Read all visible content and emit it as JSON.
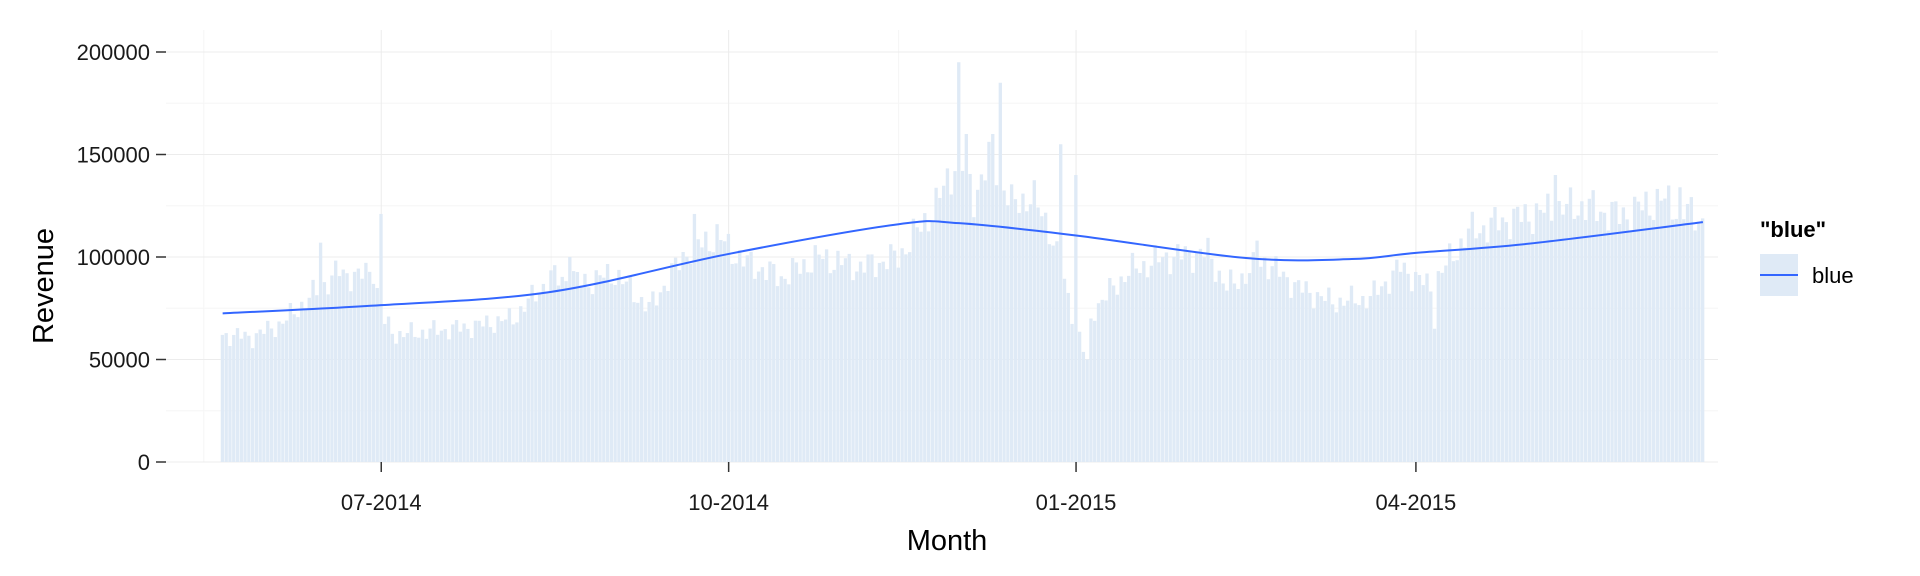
{
  "chart_data": {
    "type": "bar",
    "title": "",
    "xlabel": "Month",
    "ylabel": "Revenue",
    "x_range": [
      "2014-05-05",
      "2015-06-20"
    ],
    "ylim": [
      0,
      200000
    ],
    "y_ticks": [
      0,
      50000,
      100000,
      150000,
      200000
    ],
    "y_tick_labels": [
      "0",
      "50000",
      "100000",
      "150000",
      "200000"
    ],
    "x_ticks": [
      {
        "date": "2014-07-01",
        "label": "07-2014"
      },
      {
        "date": "2014-10-01",
        "label": "10-2014"
      },
      {
        "date": "2015-01-01",
        "label": "01-2015"
      },
      {
        "date": "2015-04-01",
        "label": "04-2015"
      }
    ],
    "x_minor_ticks": [
      "2014-05-15",
      "2014-08-15",
      "2014-11-15",
      "2015-02-15",
      "2015-05-15"
    ],
    "grid": true,
    "legend": {
      "title": "\"blue\"",
      "label": "blue",
      "position": "right"
    },
    "colors": {
      "bars": "#dfeaf6",
      "line": "#3366ff",
      "grid_major": "#ececec",
      "grid_minor": "#f6f6f6"
    },
    "bar_series": {
      "name": "Revenue",
      "start_date": "2014-05-20",
      "end_date": "2015-06-16",
      "anchors": [
        [
          "2014-05-20",
          62000
        ],
        [
          "2014-05-28",
          61000
        ],
        [
          "2014-06-05",
          68000
        ],
        [
          "2014-06-12",
          80000
        ],
        [
          "2014-06-20",
          93000
        ],
        [
          "2014-06-25",
          90000
        ],
        [
          "2014-06-29",
          95000
        ],
        [
          "2014-07-01",
          70000
        ],
        [
          "2014-07-05",
          62000
        ],
        [
          "2014-07-15",
          64000
        ],
        [
          "2014-07-25",
          66000
        ],
        [
          "2014-08-05",
          70000
        ],
        [
          "2014-08-15",
          90000
        ],
        [
          "2014-08-25",
          88000
        ],
        [
          "2014-09-01",
          92000
        ],
        [
          "2014-09-10",
          75000
        ],
        [
          "2014-09-20",
          103000
        ],
        [
          "2014-09-28",
          110000
        ],
        [
          "2014-10-05",
          98000
        ],
        [
          "2014-10-15",
          90000
        ],
        [
          "2014-10-25",
          100000
        ],
        [
          "2014-11-05",
          95000
        ],
        [
          "2014-11-15",
          100000
        ],
        [
          "2014-11-25",
          125000
        ],
        [
          "2014-12-01",
          150000
        ],
        [
          "2014-12-05",
          130000
        ],
        [
          "2014-12-10",
          150000
        ],
        [
          "2014-12-15",
          125000
        ],
        [
          "2014-12-20",
          130000
        ],
        [
          "2014-12-25",
          115000
        ],
        [
          "2014-12-30",
          80000
        ],
        [
          "2015-01-03",
          55000
        ],
        [
          "2015-01-06",
          75000
        ],
        [
          "2015-01-15",
          93000
        ],
        [
          "2015-01-25",
          100000
        ],
        [
          "2015-02-05",
          102000
        ],
        [
          "2015-02-10",
          85000
        ],
        [
          "2015-02-20",
          98000
        ],
        [
          "2015-03-01",
          85000
        ],
        [
          "2015-03-10",
          78000
        ],
        [
          "2015-03-20",
          80000
        ],
        [
          "2015-03-28",
          95000
        ],
        [
          "2015-04-05",
          85000
        ],
        [
          "2015-04-15",
          112000
        ],
        [
          "2015-04-25",
          118000
        ],
        [
          "2015-05-05",
          122000
        ],
        [
          "2015-05-15",
          125000
        ],
        [
          "2015-05-25",
          120000
        ],
        [
          "2015-06-05",
          128000
        ],
        [
          "2015-06-16",
          118000
        ]
      ],
      "peaks": [
        [
          "2014-06-15",
          107000
        ],
        [
          "2014-07-01",
          121000
        ],
        [
          "2014-08-20",
          100000
        ],
        [
          "2014-09-22",
          121000
        ],
        [
          "2014-12-01",
          195000
        ],
        [
          "2014-12-03",
          160000
        ],
        [
          "2014-12-12",
          185000
        ],
        [
          "2014-12-10",
          160000
        ],
        [
          "2014-12-28",
          155000
        ],
        [
          "2015-01-01",
          140000
        ],
        [
          "2015-02-18",
          108000
        ],
        [
          "2015-05-08",
          140000
        ],
        [
          "2015-06-10",
          134000
        ],
        [
          "2015-01-04",
          50000
        ],
        [
          "2015-04-06",
          65000
        ]
      ]
    },
    "smooth_series": {
      "name": "blue",
      "x": [
        "2014-05-20",
        "2014-07-01",
        "2014-08-15",
        "2014-10-01",
        "2014-11-15",
        "2014-12-01",
        "2015-01-01",
        "2015-02-15",
        "2015-03-15",
        "2015-04-01",
        "2015-05-01",
        "2015-06-16"
      ],
      "y": [
        72500,
        76500,
        83000,
        101500,
        116000,
        116500,
        110500,
        99500,
        99000,
        102000,
        106500,
        117000
      ]
    }
  }
}
